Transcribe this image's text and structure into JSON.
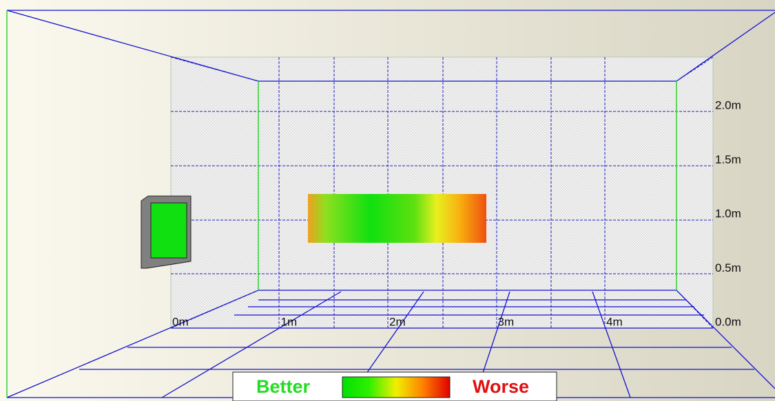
{
  "axis": {
    "x_labels": [
      "0m",
      "1m",
      "2m",
      "3m",
      "4m"
    ],
    "y_labels": [
      "0.0m",
      "0.5m",
      "1.0m",
      "1.5m",
      "2.0m"
    ]
  },
  "legend": {
    "low": "Better",
    "high": "Worse"
  }
}
